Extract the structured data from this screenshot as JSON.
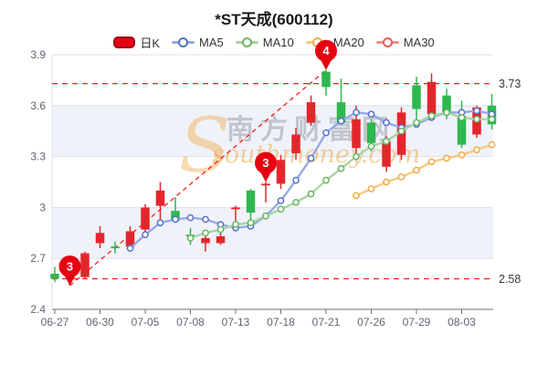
{
  "header": {
    "title": "*ST天成(600112)"
  },
  "legend": {
    "items": [
      {
        "label": "日K",
        "type": "kbar",
        "color": "#e60012",
        "border": "#9d0a0e"
      },
      {
        "label": "MA5",
        "type": "line",
        "color": "#96a8e6",
        "marker": "#5572cc"
      },
      {
        "label": "MA10",
        "type": "line",
        "color": "#a8d5a0",
        "marker": "#67b565"
      },
      {
        "label": "MA20",
        "type": "line",
        "color": "#f7ca7e",
        "marker": "#f0ab43"
      },
      {
        "label": "MA30",
        "type": "line",
        "color": "#f4928f",
        "marker": "#e85c58"
      }
    ]
  },
  "watermark": {
    "logo": "S",
    "cn": "南方财富网",
    "en": "southmoney.com"
  },
  "chart_data": {
    "type": "candlestick",
    "title": "*ST天成(600112)",
    "ylim": [
      2.4,
      3.9
    ],
    "y_ticks": [
      "3.9",
      "3.6",
      "3.3",
      "3",
      "2.7",
      "2.4"
    ],
    "y_levels": [
      3.9,
      3.6,
      3.3,
      3.0,
      2.7,
      2.4
    ],
    "x_tick_labels": [
      "06-27",
      "06-30",
      "07-05",
      "07-08",
      "07-13",
      "07-18",
      "07-21",
      "07-26",
      "07-29",
      "08-03"
    ],
    "dates": [
      "06-27",
      "06-28",
      "06-29",
      "06-30",
      "07-01",
      "07-04",
      "07-05",
      "07-06",
      "07-07",
      "07-08",
      "07-11",
      "07-12",
      "07-13",
      "07-14",
      "07-15",
      "07-18",
      "07-19",
      "07-20",
      "07-21",
      "07-22",
      "07-25",
      "07-26",
      "07-27",
      "07-28",
      "07-29",
      "08-01",
      "08-02",
      "08-03",
      "08-04",
      "08-05"
    ],
    "candles": [
      {
        "d": "06-27",
        "o": 2.61,
        "c": 2.58,
        "h": 2.65,
        "l": 2.56
      },
      {
        "d": "06-28",
        "o": 2.58,
        "c": 2.6,
        "h": 2.62,
        "l": 2.54
      },
      {
        "d": "06-29",
        "o": 2.59,
        "c": 2.73,
        "h": 2.74,
        "l": 2.58
      },
      {
        "d": "06-30",
        "o": 2.79,
        "c": 2.85,
        "h": 2.89,
        "l": 2.76
      },
      {
        "d": "07-01",
        "o": 2.77,
        "c": 2.76,
        "h": 2.8,
        "l": 2.73
      },
      {
        "d": "07-04",
        "o": 2.77,
        "c": 2.86,
        "h": 2.89,
        "l": 2.74
      },
      {
        "d": "07-05",
        "o": 2.87,
        "c": 3.0,
        "h": 3.02,
        "l": 2.84
      },
      {
        "d": "07-06",
        "o": 3.01,
        "c": 3.1,
        "h": 3.15,
        "l": 2.89
      },
      {
        "d": "07-07",
        "o": 2.98,
        "c": 2.92,
        "h": 3.06,
        "l": 2.91
      },
      {
        "d": "07-08",
        "o": 2.84,
        "c": 2.83,
        "h": 2.88,
        "l": 2.78
      },
      {
        "d": "07-11",
        "o": 2.79,
        "c": 2.82,
        "h": 2.86,
        "l": 2.74
      },
      {
        "d": "07-12",
        "o": 2.79,
        "c": 2.83,
        "h": 2.85,
        "l": 2.78
      },
      {
        "d": "07-13",
        "o": 2.99,
        "c": 3.0,
        "h": 3.01,
        "l": 2.92
      },
      {
        "d": "07-14",
        "o": 3.1,
        "c": 2.97,
        "h": 3.11,
        "l": 2.93
      },
      {
        "d": "07-15",
        "o": 3.13,
        "c": 3.14,
        "h": 3.15,
        "l": 3.03
      },
      {
        "d": "07-18",
        "o": 3.14,
        "c": 3.28,
        "h": 3.31,
        "l": 3.11
      },
      {
        "d": "07-19",
        "o": 3.32,
        "c": 3.43,
        "h": 3.47,
        "l": 3.28
      },
      {
        "d": "07-20",
        "o": 3.5,
        "c": 3.62,
        "h": 3.66,
        "l": 3.48
      },
      {
        "d": "07-21",
        "o": 3.8,
        "c": 3.71,
        "h": 3.81,
        "l": 3.66
      },
      {
        "d": "07-22",
        "o": 3.62,
        "c": 3.5,
        "h": 3.76,
        "l": 3.49
      },
      {
        "d": "07-25",
        "o": 3.35,
        "c": 3.52,
        "h": 3.6,
        "l": 3.31
      },
      {
        "d": "07-26",
        "o": 3.5,
        "c": 3.38,
        "h": 3.52,
        "l": 3.33
      },
      {
        "d": "07-27",
        "o": 3.24,
        "c": 3.39,
        "h": 3.42,
        "l": 3.21
      },
      {
        "d": "07-28",
        "o": 3.31,
        "c": 3.56,
        "h": 3.59,
        "l": 3.28
      },
      {
        "d": "07-29",
        "o": 3.72,
        "c": 3.58,
        "h": 3.77,
        "l": 3.52
      },
      {
        "d": "08-01",
        "o": 3.55,
        "c": 3.74,
        "h": 3.79,
        "l": 3.54
      },
      {
        "d": "08-02",
        "o": 3.66,
        "c": 3.55,
        "h": 3.7,
        "l": 3.52
      },
      {
        "d": "08-03",
        "o": 3.54,
        "c": 3.37,
        "h": 3.63,
        "l": 3.35
      },
      {
        "d": "08-04",
        "o": 3.43,
        "c": 3.59,
        "h": 3.6,
        "l": 3.41
      },
      {
        "d": "08-05",
        "o": 3.6,
        "c": 3.49,
        "h": 3.67,
        "l": 3.46
      }
    ],
    "series": [
      {
        "name": "MA5",
        "start": 5,
        "values": [
          2.76,
          2.84,
          2.91,
          2.93,
          2.94,
          2.93,
          2.9,
          2.88,
          2.89,
          2.95,
          3.04,
          3.16,
          3.29,
          3.44,
          3.51,
          3.56,
          3.55,
          3.5,
          3.47,
          3.49,
          3.53,
          3.56,
          3.56,
          3.57,
          3.55
        ]
      },
      {
        "name": "MA10",
        "start": 9,
        "values": [
          2.82,
          2.85,
          2.87,
          2.9,
          2.91,
          2.95,
          2.99,
          3.03,
          3.08,
          3.16,
          3.23,
          3.3,
          3.36,
          3.39,
          3.45,
          3.5,
          3.54,
          3.56,
          3.53,
          3.52,
          3.52
        ]
      },
      {
        "name": "MA20",
        "start": 20,
        "values": [
          3.07,
          3.11,
          3.15,
          3.18,
          3.22,
          3.27,
          3.29,
          3.31,
          3.34,
          3.37
        ]
      }
    ],
    "ref_lines": [
      {
        "value": 3.73,
        "label": "3.73"
      },
      {
        "value": 2.58,
        "label": "2.58"
      }
    ],
    "trend_line": {
      "from_date": "06-28",
      "from_price": 2.54,
      "to_date": "07-21",
      "to_price": 3.81
    },
    "markers": [
      {
        "date": "06-28",
        "label": "3",
        "price": 2.54
      },
      {
        "date": "07-15",
        "label": "3",
        "price": 3.15
      },
      {
        "date": "07-21",
        "label": "4",
        "price": 3.81
      }
    ],
    "colors": {
      "up": "#e3262c",
      "down": "#2eb84e",
      "ma5": "#96a8e6",
      "ma5_marker": "#5572cc",
      "ma10": "#a8d5a0",
      "ma10_marker": "#67b565",
      "ma20": "#f7ca7e",
      "ma20_marker": "#f0ab43",
      "annotation": "#e60012",
      "ref_line": "#ff1a1a",
      "ref_label": "#35373c",
      "grid": "#dde1ec",
      "band": "#f0f2f9",
      "axis": "#6b7078",
      "label": "#5f6672",
      "wm_gray": "#8a909a",
      "wm_orange": "#f0a43c"
    },
    "legend_position": "top",
    "grid": "horizontal-bands"
  }
}
